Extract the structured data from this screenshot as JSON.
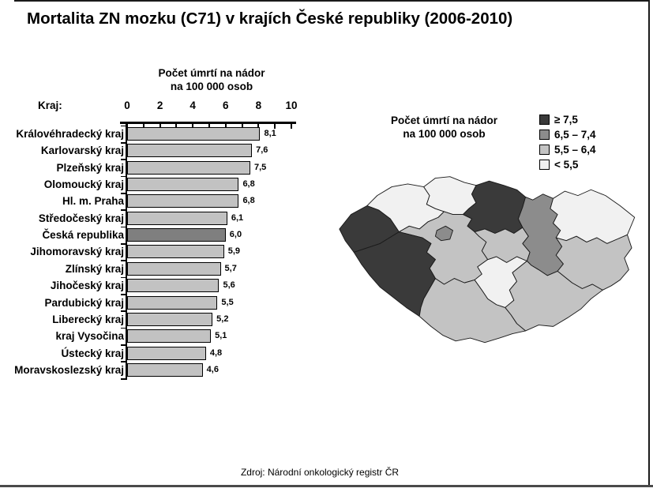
{
  "page": {
    "title": "Mortalita ZN mozku (C71) v krajích České republiky (2006-2010)",
    "source": "Zdroj: Národní onkologický registr ČR"
  },
  "chart_data": [
    {
      "type": "bar",
      "orientation": "horizontal",
      "title_line1": "Počet úmrtí na nádor",
      "title_line2": "na 100 000 osob",
      "category_axis_label": "Kraj:",
      "categories": [
        "Královéhradecký kraj",
        "Karlovarský kraj",
        "Plzeňský kraj",
        "Olomoucký kraj",
        "Hl. m. Praha",
        "Středočeský kraj",
        "Česká republika",
        "Jihomoravský kraj",
        "Zlínský kraj",
        "Jihočeský kraj",
        "Pardubický kraj",
        "Liberecký kraj",
        "kraj Vysočina",
        "Ústecký kraj",
        "Moravskoslezský kraj"
      ],
      "values": [
        8.1,
        7.6,
        7.5,
        6.8,
        6.8,
        6.1,
        6.0,
        5.9,
        5.7,
        5.6,
        5.5,
        5.2,
        5.1,
        4.8,
        4.6
      ],
      "value_labels": [
        "8,1",
        "7,6",
        "7,5",
        "6,8",
        "6,8",
        "6,1",
        "6,0",
        "5,9",
        "5,7",
        "5,6",
        "5,5",
        "5,2",
        "5,1",
        "4,8",
        "4,6"
      ],
      "x_ticks": [
        0,
        2,
        4,
        6,
        8,
        10
      ],
      "xlim": [
        0,
        10
      ],
      "grid": false,
      "bar_color": "#c2c2c2",
      "highlight_bar_color": "#7f7f7f",
      "highlight_category": "Česká republika"
    },
    {
      "type": "heatmap",
      "subtype": "choropleth-map",
      "title_line1": "Počet úmrtí na nádor",
      "title_line2": "na 100 000 osob",
      "legend_position": "top-right",
      "legend": [
        {
          "label": "≥ 7,5",
          "color": "#3a3a3a"
        },
        {
          "label": "6,5 – 7,4",
          "color": "#8c8c8c"
        },
        {
          "label": "5,5 – 6,4",
          "color": "#c3c3c3"
        },
        {
          "label": "< 5,5",
          "color": "#f1f1f1"
        }
      ],
      "regions": [
        {
          "id": "kralovehradecky",
          "name": "Královéhradecký kraj",
          "bucket": 0
        },
        {
          "id": "karlovarsky",
          "name": "Karlovarský kraj",
          "bucket": 0
        },
        {
          "id": "plzensky",
          "name": "Plzeňský kraj",
          "bucket": 0
        },
        {
          "id": "olomoucky",
          "name": "Olomoucký kraj",
          "bucket": 1
        },
        {
          "id": "praha",
          "name": "Hl. m. Praha",
          "bucket": 1
        },
        {
          "id": "stredocesky",
          "name": "Středočeský kraj",
          "bucket": 2
        },
        {
          "id": "jihomoravsky",
          "name": "Jihomoravský kraj",
          "bucket": 2
        },
        {
          "id": "zlinsky",
          "name": "Zlínský kraj",
          "bucket": 2
        },
        {
          "id": "jihocesky",
          "name": "Jihočeský kraj",
          "bucket": 2
        },
        {
          "id": "pardubicky",
          "name": "Pardubický kraj",
          "bucket": 2
        },
        {
          "id": "liberecky",
          "name": "Liberecký kraj",
          "bucket": 3
        },
        {
          "id": "vysocina",
          "name": "kraj Vysočina",
          "bucket": 3
        },
        {
          "id": "ustecky",
          "name": "Ústecký kraj",
          "bucket": 3
        },
        {
          "id": "moravskoslezsky",
          "name": "Moravskoslezský kraj",
          "bucket": 3
        }
      ]
    }
  ]
}
